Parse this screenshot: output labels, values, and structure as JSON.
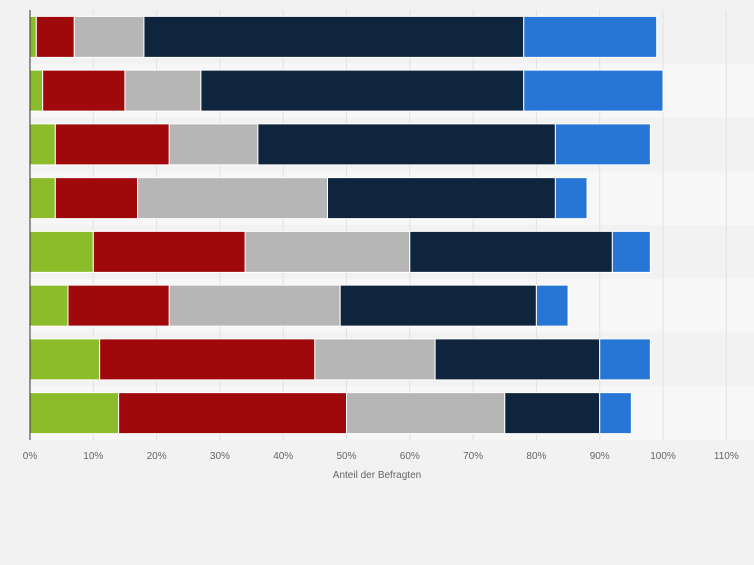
{
  "chart_data": {
    "type": "bar",
    "orientation": "horizontal",
    "stacked": true,
    "xlabel": "Anteil der Befragten",
    "xlim": [
      0,
      110
    ],
    "x_ticks": [
      "0%",
      "10%",
      "20%",
      "30%",
      "40%",
      "50%",
      "60%",
      "70%",
      "80%",
      "90%",
      "100%",
      "110%"
    ],
    "grid": true,
    "legend": "none",
    "rows": 8,
    "series": [
      {
        "color": "#8bbd2a",
        "values": [
          1,
          2,
          4,
          4,
          10,
          6,
          11,
          14
        ]
      },
      {
        "color": "#a0090b",
        "values": [
          6,
          13,
          18,
          13,
          24,
          16,
          34,
          36
        ]
      },
      {
        "color": "#b6b6b6",
        "values": [
          11,
          12,
          14,
          30,
          26,
          27,
          19,
          25
        ]
      },
      {
        "color": "#0e253d",
        "values": [
          60,
          51,
          47,
          36,
          32,
          31,
          26,
          15
        ]
      },
      {
        "color": "#2776d6",
        "values": [
          21,
          22,
          15,
          5,
          6,
          5,
          8,
          5
        ]
      }
    ]
  }
}
